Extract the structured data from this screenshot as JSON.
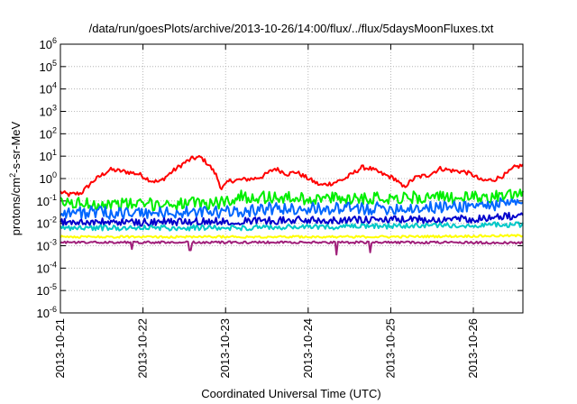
{
  "chart_data": {
    "type": "line",
    "title": "/data/run/goesPlots/archive/2013-10-26/14:00/flux/../flux/5daysMoonFluxes.txt",
    "xlabel": "Coordinated Universal Time (UTC)",
    "ylabel": {
      "base": "protons/cm",
      "sup": "2",
      "rest": "-s-sr-MeV"
    },
    "yscale": "log",
    "ylim_exp": [
      -6,
      6
    ],
    "y_ticks": [
      {
        "base": "10",
        "exp": "-6"
      },
      {
        "base": "10",
        "exp": "-5"
      },
      {
        "base": "10",
        "exp": "-4"
      },
      {
        "base": "10",
        "exp": "-3"
      },
      {
        "base": "10",
        "exp": "-2"
      },
      {
        "base": "10",
        "exp": "-1"
      },
      {
        "base": "10",
        "exp": "0"
      },
      {
        "base": "10",
        "exp": "1"
      },
      {
        "base": "10",
        "exp": "2"
      },
      {
        "base": "10",
        "exp": "3"
      },
      {
        "base": "10",
        "exp": "4"
      },
      {
        "base": "10",
        "exp": "5"
      },
      {
        "base": "10",
        "exp": "6"
      }
    ],
    "x_ticks": [
      "2013-10-21",
      "2013-10-22",
      "2013-10-23",
      "2013-10-24",
      "2013-10-25",
      "2013-10-26"
    ],
    "xlim_days": [
      0,
      5.6
    ],
    "grid": true,
    "series": [
      {
        "color": "#ff0000",
        "log10_knots": [
          [
            0,
            -0.6
          ],
          [
            0.1,
            -0.72
          ],
          [
            0.25,
            -0.65
          ],
          [
            0.4,
            -0.1
          ],
          [
            0.6,
            0.4
          ],
          [
            0.8,
            0.3
          ],
          [
            0.95,
            0.2
          ],
          [
            1.1,
            -0.1
          ],
          [
            1.2,
            -0.15
          ],
          [
            1.35,
            0.3
          ],
          [
            1.5,
            0.7
          ],
          [
            1.6,
            0.9
          ],
          [
            1.7,
            0.95
          ],
          [
            1.8,
            0.6
          ],
          [
            1.88,
            0.2
          ],
          [
            1.95,
            -0.45
          ],
          [
            2.05,
            -0.1
          ],
          [
            2.2,
            -0.05
          ],
          [
            2.35,
            0.0
          ],
          [
            2.45,
            0.1
          ],
          [
            2.6,
            0.45
          ],
          [
            2.75,
            0.2
          ],
          [
            2.85,
            0.3
          ],
          [
            3.0,
            0.0
          ],
          [
            3.15,
            -0.3
          ],
          [
            3.3,
            -0.2
          ],
          [
            3.45,
            0.0
          ],
          [
            3.55,
            0.25
          ],
          [
            3.65,
            0.5
          ],
          [
            3.75,
            0.45
          ],
          [
            3.9,
            0.2
          ],
          [
            4.05,
            0.0
          ],
          [
            4.15,
            -0.4
          ],
          [
            4.3,
            0.05
          ],
          [
            4.45,
            0.15
          ],
          [
            4.6,
            0.45
          ],
          [
            4.75,
            0.35
          ],
          [
            4.9,
            0.3
          ],
          [
            5.0,
            0.15
          ],
          [
            5.1,
            -0.1
          ],
          [
            5.25,
            -0.05
          ],
          [
            5.4,
            0.2
          ],
          [
            5.5,
            0.5
          ],
          [
            5.6,
            0.6
          ]
        ],
        "noise": 0.1,
        "spikes": []
      },
      {
        "color": "#00ee00",
        "log10_knots": [
          [
            0,
            -1.1
          ],
          [
            1.0,
            -1.15
          ],
          [
            1.9,
            -1.1
          ],
          [
            2.2,
            -0.8
          ],
          [
            3.0,
            -0.9
          ],
          [
            4.0,
            -0.85
          ],
          [
            5.0,
            -0.85
          ],
          [
            5.6,
            -0.75
          ]
        ],
        "noise": 0.28,
        "spikes": []
      },
      {
        "color": "#0066ff",
        "log10_knots": [
          [
            0,
            -1.5
          ],
          [
            1.0,
            -1.55
          ],
          [
            2.0,
            -1.5
          ],
          [
            2.5,
            -1.35
          ],
          [
            3.5,
            -1.35
          ],
          [
            4.5,
            -1.3
          ],
          [
            5.6,
            -1.1
          ]
        ],
        "noise": 0.28,
        "spikes": []
      },
      {
        "color": "#0000cc",
        "log10_knots": [
          [
            0,
            -1.95
          ],
          [
            1.0,
            -1.95
          ],
          [
            2.0,
            -1.9
          ],
          [
            3.0,
            -1.85
          ],
          [
            4.0,
            -1.85
          ],
          [
            5.0,
            -1.8
          ],
          [
            5.6,
            -1.65
          ]
        ],
        "noise": 0.17,
        "spikes": []
      },
      {
        "color": "#00c8c8",
        "log10_knots": [
          [
            0,
            -2.2
          ],
          [
            2.0,
            -2.2
          ],
          [
            3.5,
            -2.15
          ],
          [
            5.6,
            -2.05
          ]
        ],
        "noise": 0.12,
        "spikes": []
      },
      {
        "color": "#ffff00",
        "log10_knots": [
          [
            0,
            -2.6
          ],
          [
            2.0,
            -2.6
          ],
          [
            4.0,
            -2.6
          ],
          [
            5.6,
            -2.55
          ]
        ],
        "noise": 0.05,
        "spikes": []
      },
      {
        "color": "#a0207a",
        "log10_knots": [
          [
            0,
            -2.85
          ],
          [
            2.0,
            -2.85
          ],
          [
            4.0,
            -2.85
          ],
          [
            5.6,
            -2.87
          ]
        ],
        "noise": 0.05,
        "spikes": [
          [
            0.86,
            -3.15
          ],
          [
            1.57,
            -3.2
          ],
          [
            3.34,
            -3.4
          ],
          [
            3.75,
            -3.3
          ]
        ]
      }
    ]
  }
}
